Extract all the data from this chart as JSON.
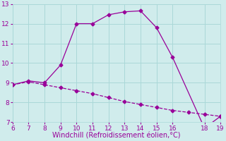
{
  "line1_x": [
    6,
    7,
    8,
    9,
    10,
    11,
    12,
    13,
    14,
    15,
    16,
    18,
    19
  ],
  "line1_y": [
    8.9,
    9.1,
    9.0,
    9.9,
    12.0,
    12.0,
    12.45,
    12.6,
    12.65,
    11.8,
    10.3,
    6.7,
    7.3
  ],
  "line2_x": [
    6,
    7,
    8,
    9,
    10,
    11,
    12,
    13,
    14,
    15,
    16,
    17,
    18,
    19
  ],
  "line2_y": [
    8.9,
    9.05,
    8.9,
    8.75,
    8.6,
    8.45,
    8.25,
    8.05,
    7.9,
    7.75,
    7.6,
    7.5,
    7.4,
    7.3
  ],
  "color": "#990099",
  "xlabel": "Windchill (Refroidissement éolien,°C)",
  "xlim": [
    6,
    19
  ],
  "ylim": [
    7,
    13
  ],
  "xticks": [
    6,
    7,
    8,
    9,
    10,
    11,
    12,
    13,
    14,
    15,
    16,
    18,
    19
  ],
  "yticks": [
    7,
    8,
    9,
    10,
    11,
    12,
    13
  ],
  "bg_color": "#d0ecec",
  "grid_color": "#aad8d8",
  "marker": "D",
  "markersize": 2.5,
  "linewidth": 0.9,
  "xlabel_fontsize": 7,
  "tick_fontsize": 6.5
}
